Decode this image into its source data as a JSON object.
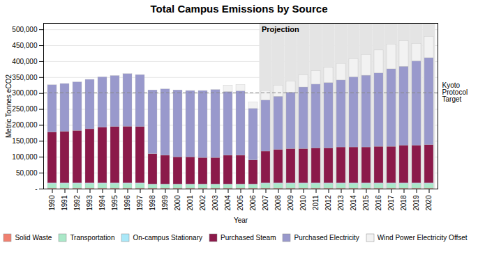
{
  "chart_data": {
    "type": "bar",
    "stacked": true,
    "title": "Total Campus Emissions by Source",
    "x_label": "Year",
    "y_label": "Metric Tonnes eCO2",
    "categories": [
      "1990",
      "1991",
      "1992",
      "1993",
      "1994",
      "1995",
      "1996",
      "1997",
      "1998",
      "1999",
      "2000",
      "2001",
      "2002",
      "2003",
      "2004",
      "2005",
      "2006",
      "2007",
      "2008",
      "2009",
      "2010",
      "2011",
      "2012",
      "2013",
      "2014",
      "2015",
      "2016",
      "2017",
      "2018",
      "2019",
      "2020"
    ],
    "series": [
      {
        "name": "Solid Waste",
        "color": "#f08070",
        "values": [
          2000,
          2000,
          2000,
          2000,
          2000,
          2000,
          2000,
          2000,
          2000,
          2000,
          2000,
          2000,
          2000,
          2000,
          2000,
          2000,
          2000,
          2000,
          2000,
          2000,
          2000,
          2000,
          2000,
          2000,
          2000,
          2000,
          2000,
          2000,
          2000,
          2000,
          2000
        ]
      },
      {
        "name": "Transportation",
        "color": "#aae8c8",
        "values": [
          14000,
          14000,
          14000,
          14000,
          14000,
          14000,
          14000,
          14000,
          11000,
          11000,
          11000,
          11000,
          11000,
          11000,
          11000,
          11000,
          11000,
          14000,
          14000,
          14000,
          14000,
          14000,
          14000,
          14000,
          14000,
          14000,
          14000,
          14000,
          14000,
          14000,
          14000
        ]
      },
      {
        "name": "On-campus Stationary",
        "color": "#aae8f8",
        "values": [
          2000,
          2000,
          2000,
          2000,
          2000,
          2000,
          2000,
          2000,
          2000,
          2000,
          2000,
          2000,
          2000,
          2000,
          2000,
          2000,
          2000,
          2000,
          2000,
          2000,
          2000,
          2000,
          2000,
          2000,
          2000,
          2000,
          2000,
          2000,
          2000,
          2000,
          2000
        ]
      },
      {
        "name": "Purchased Steam",
        "color": "#8b1a4a",
        "values": [
          160000,
          162000,
          165000,
          170000,
          175000,
          177000,
          178000,
          177000,
          95000,
          90000,
          85000,
          85000,
          83000,
          83000,
          90000,
          90000,
          75000,
          100000,
          105000,
          108000,
          108000,
          110000,
          110000,
          113000,
          113000,
          113000,
          115000,
          115000,
          118000,
          118000,
          120000
        ]
      },
      {
        "name": "Purchased Electricity",
        "color": "#9999cc",
        "values": [
          148000,
          150000,
          152000,
          155000,
          158000,
          160000,
          165000,
          163000,
          200000,
          208000,
          210000,
          208000,
          210000,
          213000,
          200000,
          202000,
          162000,
          160000,
          167000,
          177000,
          193000,
          200000,
          205000,
          210000,
          220000,
          225000,
          230000,
          243000,
          248000,
          265000,
          273000
        ]
      },
      {
        "name": "Wind Power Electricity Offset",
        "color": "#f2f2f2",
        "values": [
          0,
          0,
          0,
          0,
          0,
          0,
          0,
          0,
          0,
          0,
          0,
          0,
          0,
          0,
          20000,
          20000,
          20000,
          30000,
          35000,
          35000,
          38000,
          42000,
          48000,
          52000,
          57000,
          65000,
          72000,
          78000,
          80000,
          55000,
          67000
        ]
      }
    ],
    "ylim": [
      0,
      520000
    ],
    "yticks": [
      {
        "value": 0,
        "label": "-"
      },
      {
        "value": 50000,
        "label": "50,000"
      },
      {
        "value": 100000,
        "label": "100,000"
      },
      {
        "value": 150000,
        "label": "150,000"
      },
      {
        "value": 200000,
        "label": "200,000"
      },
      {
        "value": 250000,
        "label": "250,000"
      },
      {
        "value": 300000,
        "label": "300,000"
      },
      {
        "value": 350000,
        "label": "350,000"
      },
      {
        "value": 400000,
        "label": "400,000"
      },
      {
        "value": 450000,
        "label": "450,000"
      },
      {
        "value": 500000,
        "label": "500,000"
      }
    ],
    "grid": true,
    "legend": "bottom",
    "annotations": [
      {
        "text": "Projection",
        "x": [
          "2007",
          "2020"
        ],
        "color": "#e4e4e4"
      },
      {
        "text": "Kyoto\nProtocol\nTarget",
        "y": 302000,
        "color": "#888888",
        "line_style": "dashed"
      }
    ]
  }
}
